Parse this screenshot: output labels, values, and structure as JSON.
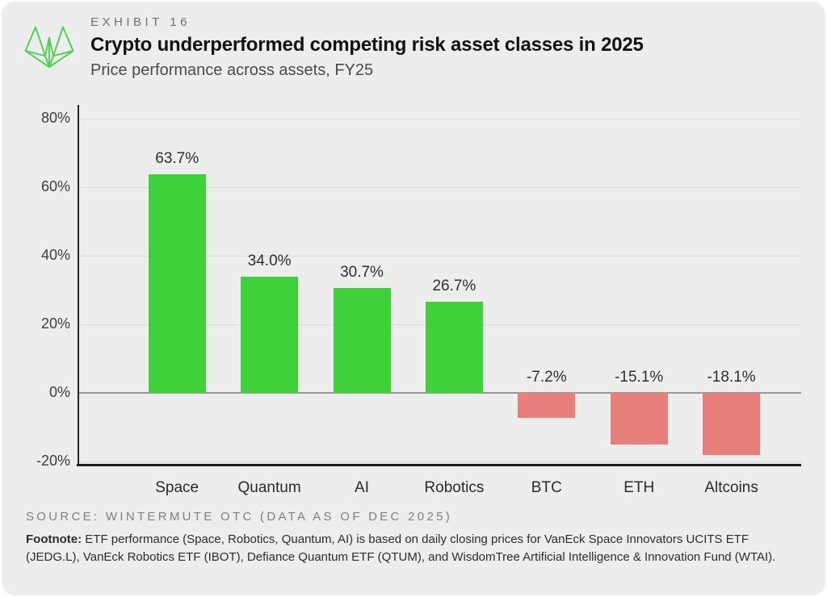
{
  "header": {
    "exhibit_label": "EXHIBIT 16",
    "title": "Crypto underperformed competing risk asset classes in 2025",
    "subtitle": "Price performance across assets, FY25",
    "logo_icon": "wintermute-logo",
    "logo_color": "#55cf55"
  },
  "chart_data": {
    "type": "bar",
    "title": "Crypto underperformed competing risk asset classes in 2025",
    "subtitle": "Price performance across assets, FY25",
    "categories": [
      "Space",
      "Quantum",
      "AI",
      "Robotics",
      "BTC",
      "ETH",
      "Altcoins"
    ],
    "values": [
      63.7,
      34.0,
      30.7,
      26.7,
      -7.2,
      -15.1,
      -18.1
    ],
    "value_labels": [
      "63.7%",
      "34.0%",
      "30.7%",
      "26.7%",
      "-7.2%",
      "-15.1%",
      "-18.1%"
    ],
    "xlabel": "",
    "ylabel": "",
    "ylim": [
      -21.6,
      84
    ],
    "yticks": [
      80,
      60,
      40,
      20,
      0,
      -20
    ],
    "ytick_labels": [
      "80%",
      "60%",
      "40%",
      "20%",
      "0%",
      "-20%"
    ],
    "grid": true,
    "legend": false,
    "colors": {
      "positive": "#3ed13a",
      "negative": "#e7807a"
    }
  },
  "footer": {
    "source": "SOURCE: WINTERMUTE OTC (DATA AS OF DEC 2025)",
    "footnote_label": "Footnote:",
    "footnote_text": " ETF performance (Space, Robotics, Quantum, AI) is based on daily closing prices for VanEck Space Innovators UCITS ETF (JEDG.L), VanEck Robotics ETF (IBOT), Defiance Quantum ETF (QTUM), and WisdomTree Artificial Intelligence & Innovation Fund (WTAI)."
  }
}
